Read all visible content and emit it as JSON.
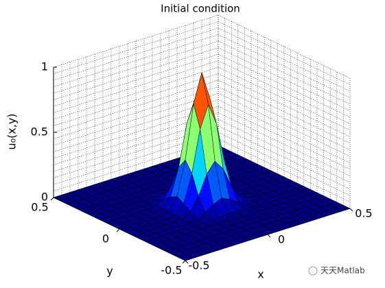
{
  "chart_data": {
    "type": "surface",
    "title": "Initial condition",
    "xlabel": "x",
    "ylabel": "y",
    "zlabel": "u₀(x,y)",
    "x": [
      -0.5,
      -0.45,
      -0.4,
      -0.35,
      -0.3,
      -0.25,
      -0.2,
      -0.15,
      -0.1,
      -0.05,
      0,
      0.05,
      0.1,
      0.15,
      0.2,
      0.25,
      0.3,
      0.35,
      0.4,
      0.45,
      0.5
    ],
    "y": [
      -0.5,
      -0.45,
      -0.4,
      -0.35,
      -0.3,
      -0.25,
      -0.2,
      -0.15,
      -0.1,
      -0.05,
      0,
      0.05,
      0.1,
      0.15,
      0.2,
      0.25,
      0.3,
      0.35,
      0.4,
      0.45,
      0.5
    ],
    "z": [
      [
        0,
        0,
        0,
        0,
        0,
        0,
        0,
        0,
        0,
        0,
        0,
        0,
        0,
        0,
        0,
        0,
        0,
        0,
        0,
        0,
        0
      ],
      [
        0,
        0,
        0,
        0,
        0,
        0,
        0,
        0,
        0,
        0,
        0,
        0,
        0,
        0,
        0,
        0,
        0,
        0,
        0,
        0,
        0
      ],
      [
        0,
        0,
        0,
        0,
        0,
        0,
        0,
        0,
        0,
        0,
        0,
        0,
        0,
        0,
        0,
        0,
        0,
        0,
        0,
        0,
        0
      ],
      [
        0,
        0,
        0,
        0,
        0,
        0,
        0,
        0,
        0,
        0,
        0,
        0,
        0,
        0,
        0,
        0,
        0,
        0,
        0,
        0,
        0
      ],
      [
        0,
        0,
        0,
        0,
        0,
        0,
        0,
        0,
        0,
        0,
        0,
        0,
        0,
        0,
        0,
        0,
        0,
        0,
        0,
        0,
        0
      ],
      [
        0,
        0,
        0,
        0,
        0,
        0,
        0,
        0,
        0,
        0,
        0,
        0,
        0,
        0,
        0,
        0,
        0,
        0,
        0,
        0,
        0
      ],
      [
        0,
        0,
        0,
        0,
        0,
        0,
        0,
        0,
        0.01,
        0.01,
        0.02,
        0.01,
        0.01,
        0,
        0,
        0,
        0,
        0,
        0,
        0,
        0
      ],
      [
        0,
        0,
        0,
        0,
        0,
        0,
        0,
        0.01,
        0.04,
        0.08,
        0.11,
        0.08,
        0.04,
        0.01,
        0,
        0,
        0,
        0,
        0,
        0,
        0
      ],
      [
        0,
        0,
        0,
        0,
        0,
        0,
        0.01,
        0.04,
        0.14,
        0.29,
        0.37,
        0.29,
        0.14,
        0.04,
        0.01,
        0,
        0,
        0,
        0,
        0,
        0
      ],
      [
        0,
        0,
        0,
        0,
        0,
        0,
        0.01,
        0.08,
        0.29,
        0.61,
        0.78,
        0.61,
        0.29,
        0.08,
        0.01,
        0,
        0,
        0,
        0,
        0,
        0
      ],
      [
        0,
        0,
        0,
        0,
        0,
        0,
        0.02,
        0.11,
        0.37,
        0.78,
        1,
        0.78,
        0.37,
        0.11,
        0.02,
        0,
        0,
        0,
        0,
        0,
        0
      ],
      [
        0,
        0,
        0,
        0,
        0,
        0,
        0.01,
        0.08,
        0.29,
        0.61,
        0.78,
        0.61,
        0.29,
        0.08,
        0.01,
        0,
        0,
        0,
        0,
        0,
        0
      ],
      [
        0,
        0,
        0,
        0,
        0,
        0,
        0.01,
        0.04,
        0.14,
        0.29,
        0.37,
        0.29,
        0.14,
        0.04,
        0.01,
        0,
        0,
        0,
        0,
        0,
        0
      ],
      [
        0,
        0,
        0,
        0,
        0,
        0,
        0,
        0.01,
        0.04,
        0.08,
        0.11,
        0.08,
        0.04,
        0.01,
        0,
        0,
        0,
        0,
        0,
        0,
        0
      ],
      [
        0,
        0,
        0,
        0,
        0,
        0,
        0,
        0,
        0.01,
        0.01,
        0.02,
        0.01,
        0.01,
        0,
        0,
        0,
        0,
        0,
        0,
        0,
        0
      ],
      [
        0,
        0,
        0,
        0,
        0,
        0,
        0,
        0,
        0,
        0,
        0,
        0,
        0,
        0,
        0,
        0,
        0,
        0,
        0,
        0,
        0
      ],
      [
        0,
        0,
        0,
        0,
        0,
        0,
        0,
        0,
        0,
        0,
        0,
        0,
        0,
        0,
        0,
        0,
        0,
        0,
        0,
        0,
        0
      ],
      [
        0,
        0,
        0,
        0,
        0,
        0,
        0,
        0,
        0,
        0,
        0,
        0,
        0,
        0,
        0,
        0,
        0,
        0,
        0,
        0,
        0
      ],
      [
        0,
        0,
        0,
        0,
        0,
        0,
        0,
        0,
        0,
        0,
        0,
        0,
        0,
        0,
        0,
        0,
        0,
        0,
        0,
        0,
        0
      ],
      [
        0,
        0,
        0,
        0,
        0,
        0,
        0,
        0,
        0,
        0,
        0,
        0,
        0,
        0,
        0,
        0,
        0,
        0,
        0,
        0,
        0
      ],
      [
        0,
        0,
        0,
        0,
        0,
        0,
        0,
        0,
        0,
        0,
        0,
        0,
        0,
        0,
        0,
        0,
        0,
        0,
        0,
        0,
        0
      ]
    ],
    "xlim": [
      -0.5,
      0.5
    ],
    "ylim": [
      -0.5,
      0.5
    ],
    "zlim": [
      0,
      1
    ],
    "xticks": [
      -0.5,
      0,
      0.5
    ],
    "yticks": [
      -0.5,
      0,
      0.5
    ],
    "zticks": [
      0,
      0.5,
      1
    ],
    "colormap": "jet",
    "grid": true,
    "minor_grid": true,
    "edge_color": "#000000"
  },
  "watermark": "天天Matlab"
}
